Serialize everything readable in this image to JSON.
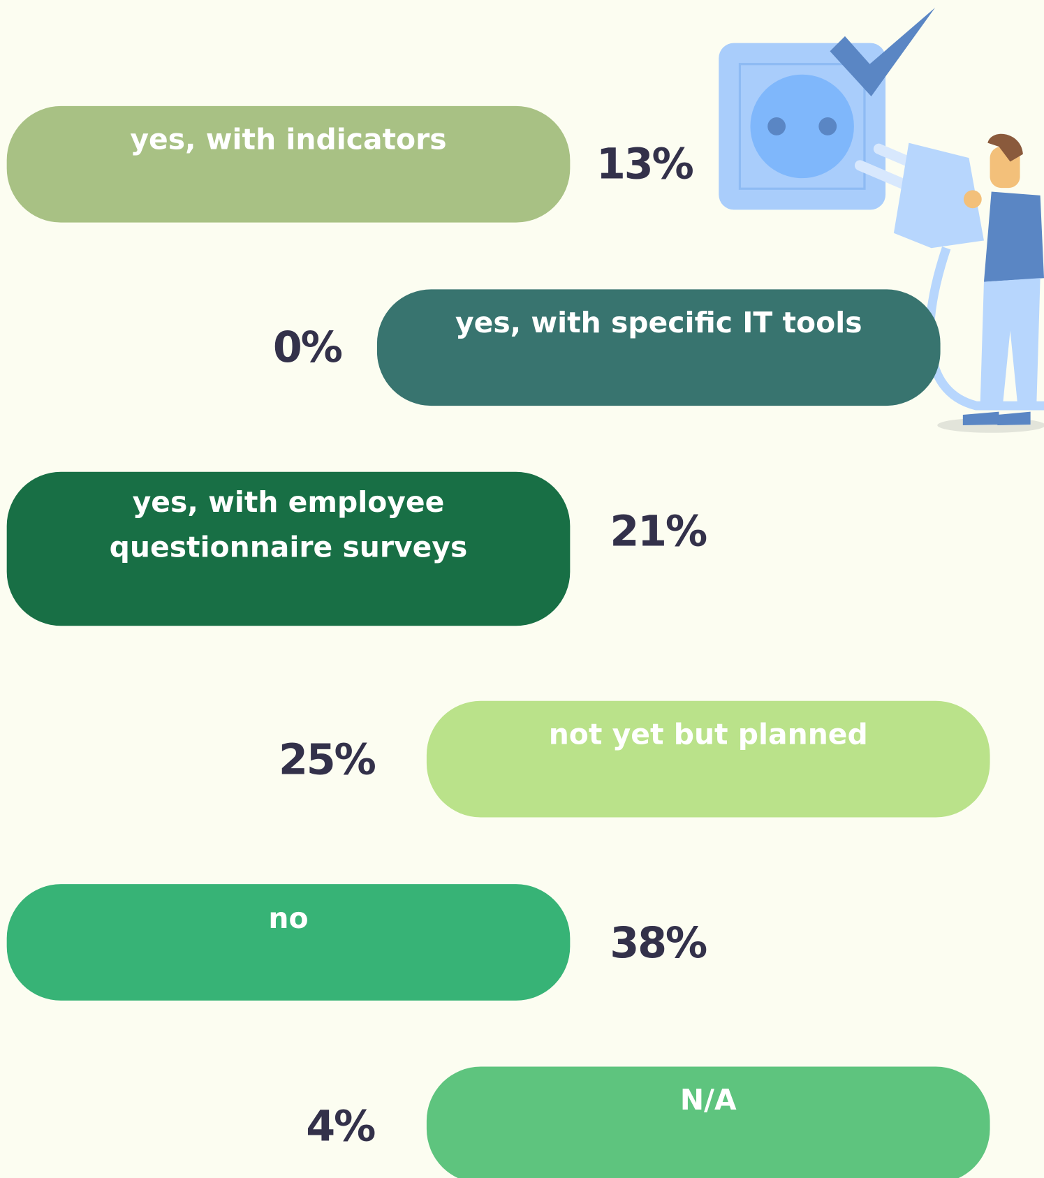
{
  "items": [
    {
      "label": "yes, with indicators",
      "value": "13%"
    },
    {
      "label": "yes, with specific IT tools",
      "value": "0%"
    },
    {
      "label": [
        "yes, with employee",
        "questionnaire surveys"
      ],
      "value": "21%"
    },
    {
      "label": "not yet but planned",
      "value": "25%"
    },
    {
      "label": "no",
      "value": "38%"
    },
    {
      "label": "N/A",
      "value": "4%"
    }
  ]
}
